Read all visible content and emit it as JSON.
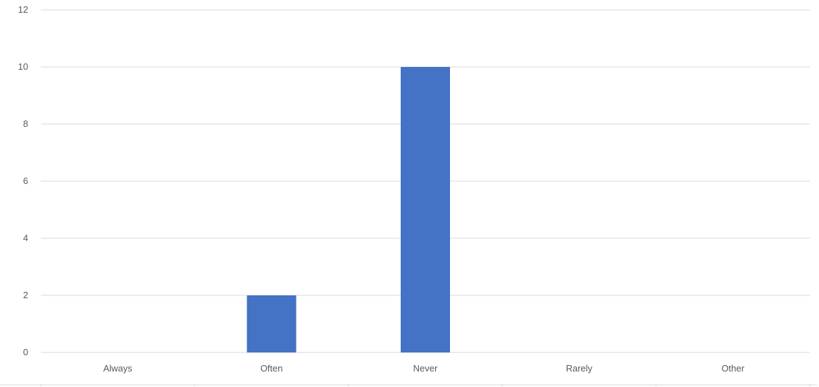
{
  "chart_data": {
    "type": "bar",
    "title": "",
    "xlabel": "",
    "ylabel": "",
    "categories": [
      "Always",
      "Often",
      "Never",
      "Rarely",
      "Other"
    ],
    "values": [
      0,
      2,
      10,
      0,
      0
    ],
    "ylim": [
      0,
      12
    ],
    "yticks": [
      "0",
      "2",
      "4",
      "6",
      "8",
      "10",
      "12"
    ],
    "grid": true,
    "legend": "none",
    "colors": {
      "bar": "#4472C4",
      "grid": "#D9D9D9",
      "axis_text": "#595959"
    }
  }
}
